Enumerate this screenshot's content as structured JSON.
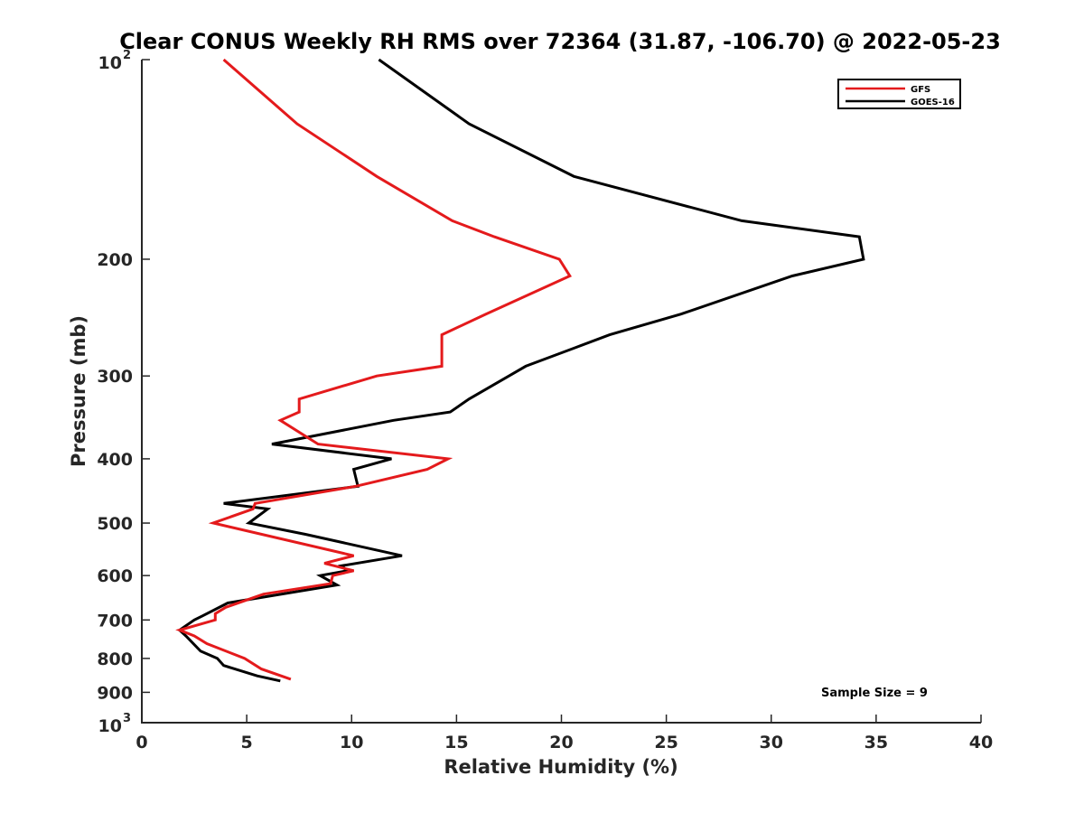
{
  "chart_data": {
    "type": "line",
    "title": "Clear CONUS Weekly RH RMS over 72364 (31.87, -106.70) @ 2022-05-23",
    "xlabel": "Relative Humidity (%)",
    "ylabel": "Pressure (mb)",
    "xlim": [
      0,
      40
    ],
    "ylim": [
      100,
      1000
    ],
    "y_scale": "log",
    "y_reversed": true,
    "grid": false,
    "legend_position": "top-right",
    "x_ticks": [
      {
        "value": 0,
        "label": "0"
      },
      {
        "value": 5,
        "label": "5"
      },
      {
        "value": 10,
        "label": "10"
      },
      {
        "value": 15,
        "label": "15"
      },
      {
        "value": 20,
        "label": "20"
      },
      {
        "value": 25,
        "label": "25"
      },
      {
        "value": 30,
        "label": "30"
      },
      {
        "value": 35,
        "label": "35"
      },
      {
        "value": 40,
        "label": "40"
      }
    ],
    "y_ticks": [
      {
        "value": 100,
        "label": "10",
        "exp": "2"
      },
      {
        "value": 200,
        "label": "200"
      },
      {
        "value": 300,
        "label": "300"
      },
      {
        "value": 400,
        "label": "400"
      },
      {
        "value": 500,
        "label": "500"
      },
      {
        "value": 600,
        "label": "600"
      },
      {
        "value": 700,
        "label": "700"
      },
      {
        "value": 800,
        "label": "800"
      },
      {
        "value": 900,
        "label": "900"
      },
      {
        "value": 1000,
        "label": "10",
        "exp": "3"
      }
    ],
    "series": [
      {
        "name": "GFS",
        "color": "#e41a1c",
        "points": [
          [
            3.9,
            100
          ],
          [
            7.4,
            125
          ],
          [
            11.2,
            150
          ],
          [
            14.8,
            175
          ],
          [
            16.8,
            185
          ],
          [
            19.9,
            200
          ],
          [
            20.4,
            212
          ],
          [
            16.4,
            242
          ],
          [
            14.3,
            260
          ],
          [
            14.3,
            290
          ],
          [
            11.2,
            300
          ],
          [
            7.5,
            325
          ],
          [
            7.5,
            340
          ],
          [
            6.6,
            350
          ],
          [
            8.4,
            380
          ],
          [
            14.6,
            400
          ],
          [
            13.6,
            415
          ],
          [
            10.2,
            440
          ],
          [
            5.4,
            467
          ],
          [
            5.3,
            476
          ],
          [
            3.4,
            500
          ],
          [
            10.1,
            560
          ],
          [
            8.7,
            575
          ],
          [
            10.1,
            590
          ],
          [
            9.1,
            600
          ],
          [
            9.0,
            617
          ],
          [
            5.8,
            640
          ],
          [
            4.0,
            670
          ],
          [
            3.5,
            685
          ],
          [
            3.5,
            700
          ],
          [
            1.8,
            725
          ],
          [
            2.5,
            740
          ],
          [
            3.1,
            760
          ],
          [
            4.9,
            800
          ],
          [
            5.7,
            830
          ],
          [
            7.1,
            860
          ]
        ]
      },
      {
        "name": "GOES-16",
        "color": "#000000",
        "points": [
          [
            11.3,
            100
          ],
          [
            15.6,
            125
          ],
          [
            20.6,
            150
          ],
          [
            28.6,
            175
          ],
          [
            34.2,
            185
          ],
          [
            34.4,
            200
          ],
          [
            31.0,
            212
          ],
          [
            25.7,
            242
          ],
          [
            22.3,
            260
          ],
          [
            18.3,
            290
          ],
          [
            17.5,
            300
          ],
          [
            15.6,
            325
          ],
          [
            14.7,
            340
          ],
          [
            12.0,
            350
          ],
          [
            6.2,
            380
          ],
          [
            11.9,
            400
          ],
          [
            10.1,
            415
          ],
          [
            10.3,
            440
          ],
          [
            3.9,
            467
          ],
          [
            6.0,
            476
          ],
          [
            5.1,
            500
          ],
          [
            7.8,
            520
          ],
          [
            12.4,
            560
          ],
          [
            9.5,
            580
          ],
          [
            9.8,
            590
          ],
          [
            8.5,
            600
          ],
          [
            9.3,
            620
          ],
          [
            4.1,
            660
          ],
          [
            2.9,
            690
          ],
          [
            2.5,
            700
          ],
          [
            1.8,
            725
          ],
          [
            2.1,
            740
          ],
          [
            2.8,
            780
          ],
          [
            3.6,
            800
          ],
          [
            3.9,
            820
          ],
          [
            5.5,
            850
          ],
          [
            6.6,
            865
          ]
        ]
      }
    ],
    "annotations": [
      "Sample Size = 9"
    ]
  }
}
